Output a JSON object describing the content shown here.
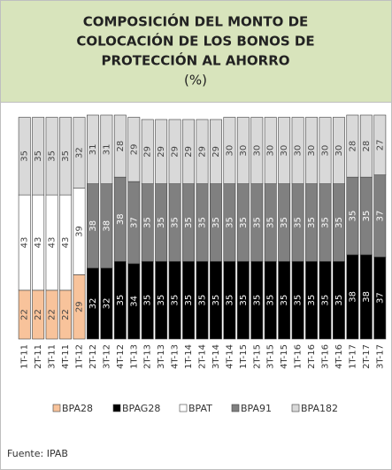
{
  "chart_data": {
    "type": "stacked_bar",
    "title": [
      "COMPOSICIÓN DEL MONTO DE",
      "COLOCACIÓN DE LOS BONOS DE",
      "PROTECCIÓN AL AHORRO"
    ],
    "subtitle": "(%)",
    "source": "Fuente: IPAB",
    "categories": [
      "1T-11",
      "2T-11",
      "3T-11",
      "4T-11",
      "1T-12",
      "2T-12",
      "3T-12",
      "4T-12",
      "1T-13",
      "2T-13",
      "3T-13",
      "4T-13",
      "1T-14",
      "2T-14",
      "3T-14",
      "4T-14",
      "1T-15",
      "2T-15",
      "3T-15",
      "4T-15",
      "1T-16",
      "2T-16",
      "3T-16",
      "4T-16",
      "1T-17",
      "2T-17",
      "3T-17"
    ],
    "series": [
      {
        "name": "BPA28",
        "color": "#f8c39b",
        "values": [
          22,
          22,
          22,
          22,
          29,
          null,
          null,
          null,
          null,
          null,
          null,
          null,
          null,
          null,
          null,
          null,
          null,
          null,
          null,
          null,
          null,
          null,
          null,
          null,
          null,
          null,
          null
        ]
      },
      {
        "name": "BPAG28",
        "color": "#000000",
        "values": [
          null,
          null,
          null,
          null,
          null,
          32,
          32,
          35,
          34,
          35,
          35,
          35,
          35,
          35,
          35,
          35,
          35,
          35,
          35,
          35,
          35,
          35,
          35,
          35,
          38,
          38,
          37
        ]
      },
      {
        "name": "BPAT",
        "color": "#ffffff",
        "values": [
          43,
          43,
          43,
          43,
          39,
          null,
          null,
          null,
          null,
          null,
          null,
          null,
          null,
          null,
          null,
          null,
          null,
          null,
          null,
          null,
          null,
          null,
          null,
          null,
          null,
          null,
          null
        ]
      },
      {
        "name": "BPA91",
        "color": "#808080",
        "values": [
          null,
          null,
          null,
          null,
          null,
          38,
          38,
          38,
          37,
          35,
          35,
          35,
          35,
          35,
          35,
          35,
          35,
          35,
          35,
          35,
          35,
          35,
          35,
          35,
          35,
          35,
          37
        ]
      },
      {
        "name": "BPA182",
        "color": "#d9d9d9",
        "values": [
          35,
          35,
          35,
          35,
          32,
          31,
          31,
          28,
          29,
          29,
          29,
          29,
          29,
          29,
          29,
          30,
          30,
          30,
          30,
          30,
          30,
          30,
          30,
          30,
          28,
          28,
          27
        ]
      }
    ],
    "ylim": [
      0,
      101
    ]
  }
}
